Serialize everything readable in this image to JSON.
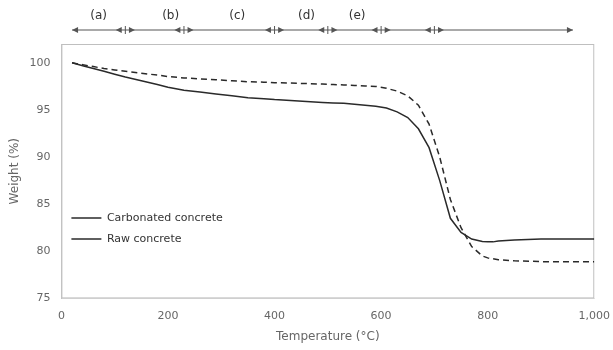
{
  "chart_data": {
    "type": "line",
    "xlabel": "Temperature (°C)",
    "ylabel": "Weight (%)",
    "xlim": [
      0,
      1000
    ],
    "ylim": [
      75,
      102
    ],
    "xticks": [
      0,
      200,
      400,
      600,
      800,
      1000
    ],
    "yticks": [
      75,
      80,
      85,
      90,
      95,
      100
    ],
    "grid": false,
    "legend": "upper right",
    "series": [
      {
        "name": "Raw concrete",
        "color": "#2a2a2a",
        "line_style": "solid",
        "x": [
          20,
          40,
          60,
          80,
          100,
          120,
          150,
          180,
          200,
          230,
          260,
          290,
          320,
          350,
          380,
          400,
          430,
          460,
          490,
          510,
          530,
          550,
          570,
          590,
          610,
          630,
          650,
          670,
          690,
          710,
          730,
          750,
          770,
          790,
          800,
          810,
          820,
          850,
          900,
          950,
          1000
        ],
        "values": [
          100.0,
          99.7,
          99.4,
          99.1,
          98.8,
          98.5,
          98.1,
          97.7,
          97.4,
          97.1,
          96.9,
          96.7,
          96.5,
          96.3,
          96.2,
          96.1,
          96.0,
          95.9,
          95.8,
          95.75,
          95.7,
          95.6,
          95.5,
          95.4,
          95.2,
          94.8,
          94.2,
          93.0,
          91.0,
          87.5,
          83.5,
          82.0,
          81.3,
          81.05,
          81.0,
          81.0,
          81.1,
          81.2,
          81.3,
          81.3,
          81.3
        ]
      },
      {
        "name": "Carbonated concrete",
        "color": "#2a2a2a",
        "line_style": "dashed",
        "x": [
          20,
          40,
          60,
          80,
          100,
          120,
          150,
          180,
          200,
          230,
          260,
          290,
          320,
          350,
          380,
          400,
          430,
          460,
          490,
          510,
          530,
          550,
          570,
          590,
          610,
          630,
          650,
          670,
          690,
          710,
          730,
          750,
          770,
          790,
          800,
          810,
          820,
          850,
          900,
          950,
          1000
        ],
        "values": [
          100.0,
          99.8,
          99.6,
          99.4,
          99.25,
          99.1,
          98.9,
          98.7,
          98.55,
          98.4,
          98.3,
          98.2,
          98.1,
          98.0,
          97.95,
          97.9,
          97.85,
          97.8,
          97.75,
          97.7,
          97.65,
          97.6,
          97.55,
          97.5,
          97.3,
          97.0,
          96.5,
          95.5,
          93.5,
          90.0,
          85.5,
          82.5,
          80.5,
          79.5,
          79.3,
          79.2,
          79.1,
          79.0,
          78.9,
          78.9,
          78.9
        ]
      }
    ],
    "region_bar": {
      "color": "#555555",
      "span": [
        20,
        960
      ],
      "boundaries": [
        120,
        230,
        400,
        500,
        600,
        700
      ],
      "labels": [
        {
          "text": "(a)",
          "x": 70
        },
        {
          "text": "(b)",
          "x": 205
        },
        {
          "text": "(c)",
          "x": 330
        },
        {
          "text": "(d)",
          "x": 460
        },
        {
          "text": "(e)",
          "x": 555
        }
      ]
    }
  }
}
